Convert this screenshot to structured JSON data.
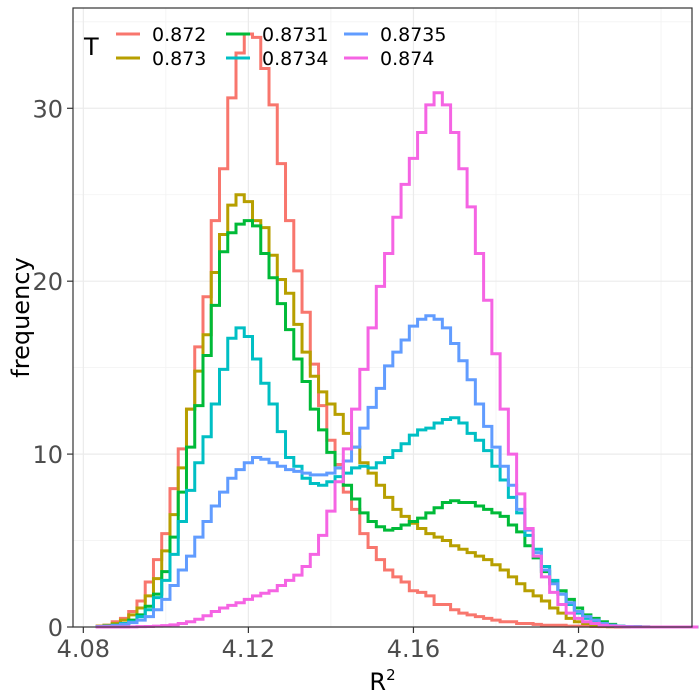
{
  "chart_data": {
    "type": "line",
    "xlabel": "R",
    "xlabel_sup": "2",
    "ylabel": "frequency",
    "xlim": [
      4.0775,
      4.2275
    ],
    "ylim": [
      0,
      35.8
    ],
    "x_ticks": [
      4.08,
      4.12,
      4.16,
      4.2
    ],
    "x_tick_labels": [
      "4.08",
      "4.12",
      "4.16",
      "4.20"
    ],
    "y_ticks": [
      0,
      10,
      20,
      30
    ],
    "y_tick_labels": [
      "0",
      "10",
      "20",
      "30"
    ],
    "grid": true,
    "legend": {
      "title": "T",
      "position": "top-inside"
    },
    "x": [
      4.084,
      4.086,
      4.088,
      4.09,
      4.092,
      4.094,
      4.096,
      4.098,
      4.1,
      4.102,
      4.104,
      4.106,
      4.108,
      4.11,
      4.112,
      4.114,
      4.116,
      4.118,
      4.12,
      4.122,
      4.124,
      4.126,
      4.128,
      4.13,
      4.132,
      4.134,
      4.136,
      4.138,
      4.14,
      4.142,
      4.144,
      4.146,
      4.148,
      4.15,
      4.152,
      4.154,
      4.156,
      4.158,
      4.16,
      4.162,
      4.164,
      4.166,
      4.168,
      4.17,
      4.172,
      4.174,
      4.176,
      4.178,
      4.18,
      4.182,
      4.184,
      4.186,
      4.188,
      4.19,
      4.192,
      4.194,
      4.196,
      4.198,
      4.2,
      4.202,
      4.204,
      4.206,
      4.208,
      4.21,
      4.212,
      4.214,
      4.216,
      4.218,
      4.22,
      4.222,
      4.224,
      4.226,
      4.228
    ],
    "series": [
      {
        "name": "0.872",
        "color": "#f8766d",
        "values": [
          0.05,
          0.1,
          0.3,
          0.5,
          0.9,
          1.5,
          2.6,
          3.9,
          5.4,
          8,
          10.3,
          12.6,
          16.2,
          19.1,
          23.5,
          26.5,
          30.6,
          33.2,
          34.3,
          34.1,
          32.3,
          30.2,
          26.8,
          23.5,
          20.6,
          18.2,
          15.2,
          12.8,
          10.8,
          9.4,
          7.8,
          6.8,
          5.4,
          4.6,
          3.9,
          3.3,
          2.9,
          2.6,
          2.1,
          2,
          1.8,
          1.3,
          1.3,
          1,
          0.8,
          0.7,
          0.6,
          0.5,
          0.4,
          0.3,
          0.3,
          0.2,
          0.2,
          0.15,
          0.1,
          0.1,
          0.1,
          0.05,
          0.05,
          0.05,
          0.03,
          0.02,
          0.01,
          0,
          0,
          0,
          0,
          0,
          0,
          0,
          0,
          0,
          0
        ]
      },
      {
        "name": "0.873",
        "color": "#b79f00",
        "values": [
          0.05,
          0.1,
          0.2,
          0.4,
          0.7,
          1.1,
          1.8,
          2.8,
          4.4,
          6.5,
          9.2,
          12.6,
          14.8,
          16.9,
          20.5,
          22.7,
          24.4,
          25,
          24.6,
          23.5,
          23.1,
          21.5,
          20.1,
          19.3,
          17.5,
          15.9,
          14.5,
          13.6,
          12.9,
          12.3,
          11.2,
          10.4,
          9.5,
          8.9,
          8.2,
          7.5,
          6.8,
          6.4,
          6,
          5.7,
          5.4,
          5.2,
          5,
          4.7,
          4.5,
          4.3,
          4.1,
          3.9,
          3.6,
          3.3,
          2.9,
          2.5,
          2.1,
          1.8,
          1.5,
          1.1,
          0.8,
          0.5,
          0.3,
          0.2,
          0.1,
          0.05,
          0.03,
          0.02,
          0.01,
          0,
          0,
          0,
          0,
          0,
          0,
          0,
          0
        ]
      },
      {
        "name": "0.8731",
        "color": "#00ba38",
        "values": [
          0.03,
          0.05,
          0.1,
          0.2,
          0.4,
          0.7,
          1.2,
          1.9,
          3.2,
          5.2,
          7.8,
          10.4,
          12.8,
          15.7,
          18.6,
          21.7,
          22.8,
          23.3,
          23.5,
          23.2,
          21.6,
          20.2,
          18.7,
          17.2,
          15.5,
          14.2,
          12.6,
          11.4,
          10.1,
          9.2,
          8.2,
          7.4,
          6.6,
          6.1,
          5.8,
          5.6,
          5.7,
          5.9,
          6.1,
          6.3,
          6.6,
          6.9,
          7.2,
          7.3,
          7.2,
          7.2,
          7,
          6.8,
          6.6,
          6.4,
          5.9,
          5.5,
          4.7,
          4,
          3.2,
          2.6,
          2.1,
          1.6,
          1.1,
          0.7,
          0.5,
          0.3,
          0.15,
          0.05,
          0.03,
          0.02,
          0.01,
          0,
          0,
          0,
          0,
          0,
          0
        ]
      },
      {
        "name": "0.8734",
        "color": "#00bfc4",
        "values": [
          0.03,
          0.05,
          0.1,
          0.2,
          0.3,
          0.6,
          1,
          1.7,
          2.7,
          4.2,
          6.1,
          7.9,
          9.5,
          11,
          12.9,
          14.9,
          16.7,
          17.3,
          16.8,
          15.5,
          14.1,
          12.9,
          11.3,
          9.8,
          9.3,
          8.6,
          8.3,
          8.2,
          8.4,
          8.7,
          8.9,
          9.2,
          9.3,
          9.2,
          9.5,
          9.8,
          10.2,
          10.6,
          11.1,
          11.4,
          11.5,
          11.8,
          12,
          12.1,
          11.8,
          11.2,
          10.8,
          10.2,
          9.3,
          8.5,
          7.5,
          6.6,
          5.3,
          4.5,
          3.5,
          2.7,
          1.9,
          1.3,
          0.8,
          0.5,
          0.3,
          0.15,
          0.05,
          0.03,
          0.02,
          0.01,
          0,
          0,
          0,
          0,
          0,
          0,
          0
        ]
      },
      {
        "name": "0.8735",
        "color": "#619cff",
        "values": [
          0.02,
          0.04,
          0.08,
          0.15,
          0.25,
          0.4,
          0.6,
          1,
          1.6,
          2.4,
          3.3,
          4.1,
          5.2,
          6.1,
          7,
          7.8,
          8.6,
          9.1,
          9.5,
          9.8,
          9.7,
          9.5,
          9.3,
          9.1,
          9,
          8.9,
          8.8,
          8.8,
          8.9,
          9.2,
          9.6,
          10.4,
          11.5,
          12.7,
          13.8,
          15.1,
          15.9,
          16.6,
          17.4,
          17.8,
          18,
          17.8,
          17.3,
          16.4,
          15.4,
          14.3,
          12.9,
          11.6,
          10.4,
          9.3,
          8.2,
          6.8,
          5.6,
          4.3,
          3.3,
          2.5,
          1.9,
          1.4,
          0.9,
          0.6,
          0.4,
          0.2,
          0.1,
          0.05,
          0.03,
          0.02,
          0.01,
          0,
          0,
          0,
          0,
          0,
          0
        ]
      },
      {
        "name": "0.874",
        "color": "#f564e3",
        "values": [
          0,
          0,
          0,
          0,
          0.01,
          0.02,
          0.03,
          0.05,
          0.08,
          0.12,
          0.2,
          0.3,
          0.45,
          0.65,
          0.9,
          1.1,
          1.25,
          1.4,
          1.6,
          1.8,
          1.95,
          2.1,
          2.4,
          2.7,
          3,
          3.5,
          4.2,
          5.3,
          6.7,
          8.4,
          10.3,
          12.6,
          14.9,
          17.3,
          19.7,
          21.6,
          23.7,
          25.6,
          27.1,
          28.6,
          30.2,
          30.9,
          30.2,
          28.6,
          26.5,
          24.3,
          21.6,
          18.9,
          15.8,
          12.6,
          10,
          7.7,
          5.7,
          4.1,
          2.9,
          2,
          1.3,
          0.8,
          0.5,
          0.3,
          0.2,
          0.1,
          0.05,
          0.02,
          0.01,
          0,
          0,
          0,
          0,
          0,
          0,
          0,
          0
        ]
      }
    ]
  }
}
